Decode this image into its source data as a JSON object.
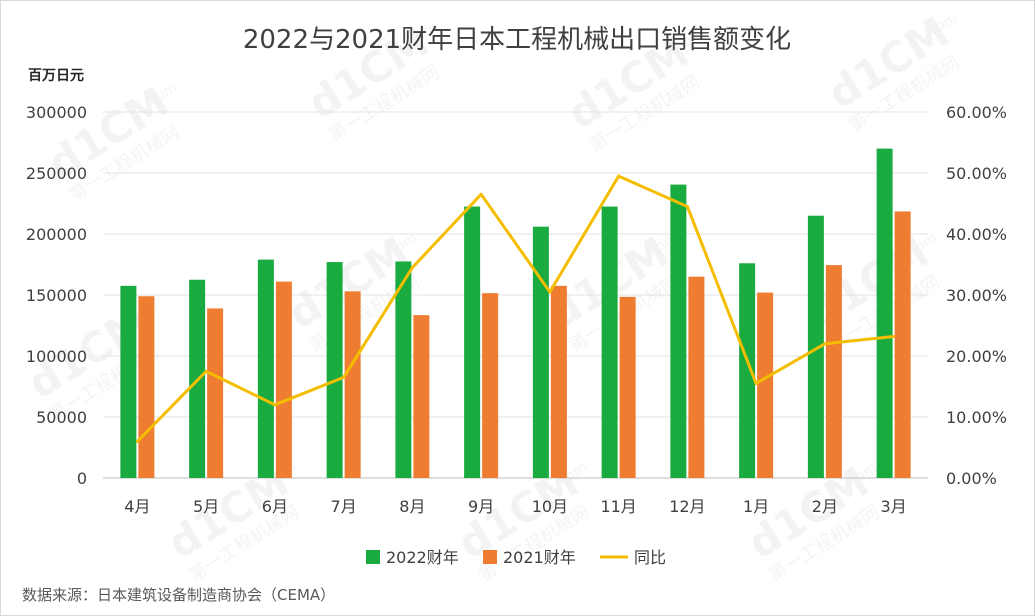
{
  "chart_data": {
    "type": "bar",
    "title": "2022与2021财年日本工程机械出口销售额变化",
    "y_unit": "百万日元",
    "categories": [
      "4月",
      "5月",
      "6月",
      "7月",
      "8月",
      "9月",
      "10月",
      "11月",
      "12月",
      "1月",
      "2月",
      "3月"
    ],
    "series": [
      {
        "name": "2022财年",
        "type": "bar",
        "axis": "left",
        "color": "#1aab40",
        "values": [
          157500,
          162500,
          179000,
          177000,
          177500,
          222500,
          206000,
          222500,
          240500,
          176000,
          215000,
          270000
        ]
      },
      {
        "name": "2021财年",
        "type": "bar",
        "axis": "left",
        "color": "#ee7d31",
        "values": [
          149000,
          139000,
          161000,
          153000,
          133500,
          151500,
          157500,
          148500,
          165000,
          152000,
          174500,
          218500
        ]
      },
      {
        "name": "同比",
        "type": "line",
        "axis": "right",
        "color": "#f5bd00",
        "values": [
          6.0,
          17.5,
          12.0,
          16.5,
          34.5,
          46.5,
          30.5,
          49.5,
          44.5,
          15.5,
          22.0,
          23.2
        ]
      }
    ],
    "y_left": {
      "min": 0,
      "max": 300000,
      "ticks": [
        "0",
        "50000",
        "100000",
        "150000",
        "200000",
        "250000",
        "300000"
      ]
    },
    "y_right": {
      "min": 0,
      "max": 60,
      "ticks": [
        "0.00%",
        "10.00%",
        "20.00%",
        "30.00%",
        "40.00%",
        "50.00%",
        "60.00%"
      ]
    },
    "grid": true,
    "legend_position": "bottom"
  },
  "source_note": "数据来源：日本建筑设备制造商协会（CEMA）",
  "watermark": {
    "text": "d1CM",
    "sub": "第一工程机械网",
    "domain": "com"
  }
}
